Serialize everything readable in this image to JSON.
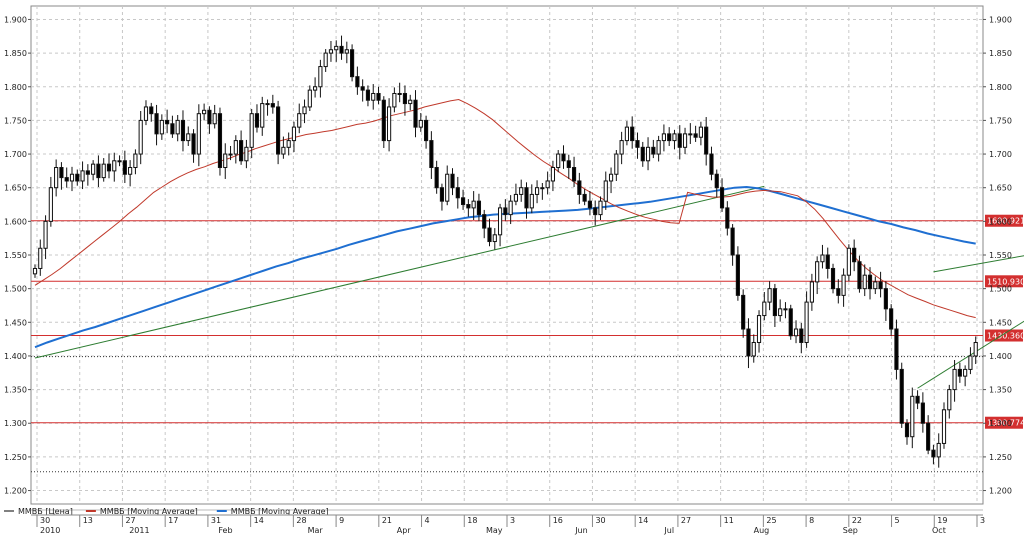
{
  "chart_data": {
    "type": "candlestick",
    "title": "",
    "ylim": [
      1180,
      1920
    ],
    "y_ticks": [
      1200,
      1250,
      1300,
      1350,
      1400,
      1450,
      1500,
      1550,
      1600,
      1650,
      1700,
      1750,
      1800,
      1850,
      1900
    ],
    "y_tick_labels": [
      "1.200",
      "1.250",
      "1.300",
      "1.350",
      "1.400",
      "1.450",
      "1.500",
      "1.550",
      "1.600",
      "1.650",
      "1.700",
      "1.750",
      "1.800",
      "1.850",
      "1.900"
    ],
    "legend": [
      {
        "label": "ММВБ [Цена]",
        "color": "#000000"
      },
      {
        "label": "ММВБ [Moving Average]",
        "color": "#c0392b"
      },
      {
        "label": "ММВБ [Moving Average]",
        "color": "#1f6fd1"
      }
    ],
    "x_day_labels": [
      "30",
      "13",
      "27",
      "17",
      "31",
      "14",
      "28",
      "9",
      "21",
      "4",
      "18",
      "3",
      "16",
      "30",
      "14",
      "27",
      "11",
      "25",
      "8",
      "22",
      "5",
      "19",
      "3"
    ],
    "x_month_labels": [
      "2010",
      "2011",
      "Feb",
      "Mar",
      "Apr",
      "May",
      "Jun",
      "Jul",
      "Aug",
      "Sep",
      "Oct"
    ],
    "horizontal_levels": [
      {
        "value": 1600.9212,
        "label": "1600.9212"
      },
      {
        "value": 1510.9304,
        "label": "1510.9304"
      },
      {
        "value": 1430.3608,
        "label": "1430.3608"
      },
      {
        "value": 1300.7748,
        "label": "1300.7748"
      }
    ],
    "dotted_levels": [
      1399,
      1228
    ],
    "trendlines": [
      {
        "from": [
          0,
          1397
        ],
        "to": [
          138,
          1652
        ]
      },
      {
        "from": [
          167,
          1352
        ],
        "to": [
          200,
          1515
        ]
      },
      {
        "from": [
          170,
          1525
        ],
        "to": [
          208,
          1578
        ]
      }
    ],
    "candles_close": [
      1530,
      1560,
      1600,
      1650,
      1680,
      1665,
      1660,
      1670,
      1660,
      1675,
      1670,
      1685,
      1665,
      1685,
      1675,
      1690,
      1690,
      1670,
      1680,
      1700,
      1750,
      1770,
      1760,
      1730,
      1750,
      1745,
      1730,
      1750,
      1720,
      1730,
      1700,
      1760,
      1765,
      1745,
      1760,
      1680,
      1700,
      1700,
      1720,
      1690,
      1710,
      1760,
      1740,
      1775,
      1775,
      1770,
      1700,
      1710,
      1720,
      1740,
      1760,
      1770,
      1795,
      1800,
      1830,
      1850,
      1855,
      1860,
      1850,
      1855,
      1815,
      1800,
      1795,
      1780,
      1790,
      1780,
      1720,
      1770,
      1790,
      1790,
      1775,
      1780,
      1740,
      1750,
      1720,
      1680,
      1650,
      1630,
      1670,
      1650,
      1635,
      1625,
      1620,
      1630,
      1610,
      1590,
      1570,
      1580,
      1620,
      1610,
      1630,
      1640,
      1650,
      1620,
      1640,
      1650,
      1650,
      1660,
      1680,
      1700,
      1690,
      1680,
      1660,
      1640,
      1630,
      1620,
      1610,
      1630,
      1660,
      1670,
      1700,
      1720,
      1740,
      1720,
      1710,
      1690,
      1710,
      1700,
      1720,
      1730,
      1720,
      1730,
      1710,
      1730,
      1730,
      1725,
      1740,
      1700,
      1670,
      1650,
      1620,
      1590,
      1550,
      1490,
      1440,
      1400,
      1420,
      1460,
      1480,
      1500,
      1460,
      1470,
      1470,
      1430,
      1440,
      1420,
      1480,
      1510,
      1540,
      1550,
      1530,
      1500,
      1490,
      1520,
      1560,
      1540,
      1500,
      1520,
      1500,
      1510,
      1500,
      1470,
      1440,
      1380,
      1300,
      1280,
      1340,
      1330,
      1300,
      1260,
      1250,
      1270,
      1320,
      1350,
      1380,
      1370,
      1380,
      1400,
      1420
    ],
    "ma_red": [
      1505,
      1513,
      1521,
      1530,
      1540,
      1550,
      1560,
      1570,
      1580,
      1590,
      1600,
      1611,
      1621,
      1632,
      1643,
      1651,
      1659,
      1666,
      1672,
      1677,
      1681,
      1686,
      1690,
      1694,
      1699,
      1703,
      1708,
      1712,
      1716,
      1720,
      1723,
      1726,
      1729,
      1731,
      1733,
      1735,
      1738,
      1741,
      1744,
      1746,
      1749,
      1753,
      1757,
      1760,
      1763,
      1766,
      1770,
      1773,
      1776,
      1779,
      1781,
      1775,
      1768,
      1760,
      1751,
      1740,
      1729,
      1718,
      1708,
      1698,
      1689,
      1681,
      1672,
      1664,
      1655,
      1647,
      1640,
      1633,
      1626,
      1620,
      1615,
      1610,
      1606,
      1603,
      1600,
      1598,
      1597,
      1643,
      1640,
      1638,
      1636,
      1636,
      1637,
      1640,
      1643,
      1645,
      1646,
      1645,
      1644,
      1641,
      1638,
      1629,
      1618,
      1604,
      1588,
      1572,
      1557,
      1543,
      1531,
      1521,
      1512,
      1505,
      1498,
      1491,
      1486,
      1481,
      1476,
      1472,
      1468,
      1464,
      1460,
      1457
    ],
    "ma_blue": [
      1413,
      1420,
      1426,
      1432,
      1438,
      1443,
      1449,
      1455,
      1461,
      1467,
      1473,
      1479,
      1485,
      1491,
      1497,
      1503,
      1509,
      1515,
      1521,
      1527,
      1533,
      1538,
      1544,
      1549,
      1554,
      1559,
      1565,
      1570,
      1575,
      1580,
      1585,
      1589,
      1593,
      1597,
      1600,
      1603,
      1606,
      1608,
      1610,
      1611,
      1612,
      1613,
      1614,
      1615,
      1616,
      1617,
      1619,
      1621,
      1623,
      1625,
      1627,
      1629,
      1632,
      1635,
      1638,
      1641,
      1644,
      1647,
      1650,
      1651,
      1649,
      1645,
      1640,
      1635,
      1630,
      1625,
      1620,
      1615,
      1610,
      1605,
      1600,
      1596,
      1591,
      1587,
      1582,
      1578,
      1574,
      1570,
      1567
    ]
  }
}
